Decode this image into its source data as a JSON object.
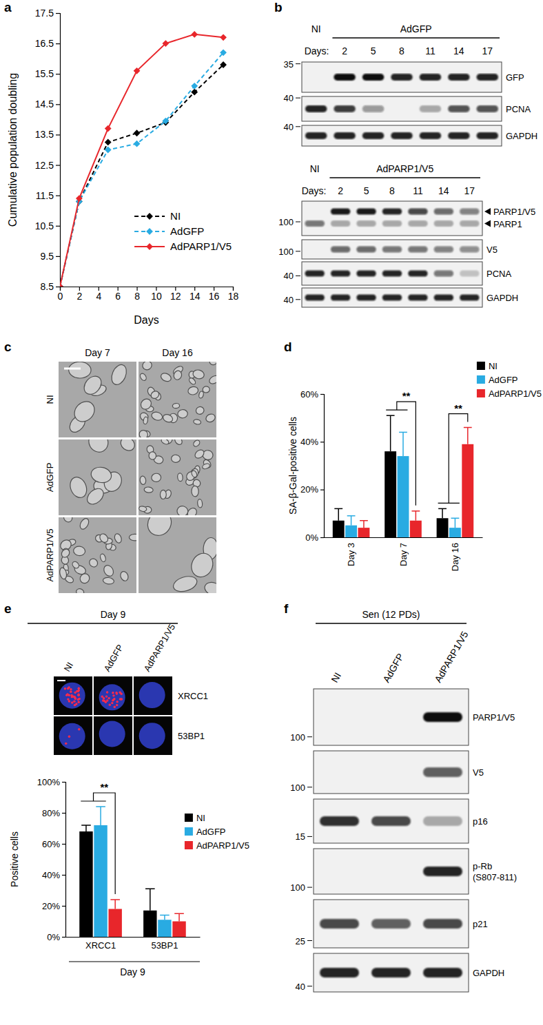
{
  "panel_labels": [
    "a",
    "b",
    "c",
    "d",
    "e",
    "f"
  ],
  "chart_data": [
    {
      "type": "line",
      "x_label": "Days",
      "y_label": "Cumulative population doubling",
      "x": [
        0,
        2,
        5,
        8,
        11,
        14,
        17
      ],
      "xlim": [
        0,
        18
      ],
      "xticks": [
        0,
        2,
        4,
        6,
        8,
        10,
        12,
        14,
        16,
        18
      ],
      "ylim": [
        8.5,
        17.5
      ],
      "yticks": [
        8.5,
        9.5,
        10.5,
        11.5,
        12.5,
        13.5,
        14.5,
        15.5,
        16.5,
        17.5
      ],
      "legend": "lower right",
      "series": [
        {
          "name": "NI",
          "color": "#000000",
          "marker": "diamond",
          "line_style": "dashed",
          "values": [
            8.5,
            11.3,
            13.25,
            13.55,
            13.9,
            14.9,
            15.8
          ]
        },
        {
          "name": "AdGFP",
          "color": "#29abe2",
          "marker": "diamond",
          "line_style": "dashed",
          "values": [
            8.5,
            11.3,
            13.0,
            13.2,
            13.95,
            15.1,
            16.2
          ]
        },
        {
          "name": "AdPARP1/V5",
          "color": "#e8262b",
          "marker": "diamond",
          "line_style": "solid",
          "values": [
            8.5,
            11.4,
            13.7,
            15.6,
            16.5,
            16.8,
            16.7
          ]
        }
      ]
    },
    {
      "type": "bar",
      "y_label": "SA-β-Gal-positive cells",
      "categories": [
        "Day 3",
        "Day 7",
        "Day 16"
      ],
      "ylim": [
        0,
        60
      ],
      "yticks": [
        {
          "value": 0,
          "label": "0%"
        },
        {
          "value": 20,
          "label": "20%"
        },
        {
          "value": 40,
          "label": "40%"
        },
        {
          "value": 60,
          "label": "60%"
        }
      ],
      "legend": "upper right",
      "series": [
        {
          "name": "NI",
          "color": "#000000",
          "values": [
            7,
            36,
            8
          ],
          "errors": [
            5,
            15,
            4
          ]
        },
        {
          "name": "AdGFP",
          "color": "#29abe2",
          "values": [
            5,
            34,
            4
          ],
          "errors": [
            4,
            10,
            4
          ]
        },
        {
          "name": "AdPARP1/V5",
          "color": "#e8262b",
          "values": [
            4,
            7,
            39
          ],
          "errors": [
            3,
            4,
            7
          ]
        }
      ],
      "annotations": [
        {
          "text": "**",
          "category": "Day 7"
        },
        {
          "text": "**",
          "category": "Day 16"
        }
      ]
    },
    {
      "type": "bar",
      "y_label": "Positive cells",
      "x_label": "Day 9",
      "categories": [
        "XRCC1",
        "53BP1"
      ],
      "ylim": [
        0,
        100
      ],
      "yticks": [
        {
          "value": 0,
          "label": "0%"
        },
        {
          "value": 20,
          "label": "20%"
        },
        {
          "value": 40,
          "label": "40%"
        },
        {
          "value": 60,
          "label": "60%"
        },
        {
          "value": 80,
          "label": "80%"
        },
        {
          "value": 100,
          "label": "100%"
        }
      ],
      "legend": "upper right",
      "series": [
        {
          "name": "NI",
          "color": "#000000",
          "values": [
            68,
            17
          ],
          "errors": [
            4,
            14
          ]
        },
        {
          "name": "AdGFP",
          "color": "#29abe2",
          "values": [
            72,
            11
          ],
          "errors": [
            12,
            3
          ]
        },
        {
          "name": "AdPARP1/V5",
          "color": "#e8262b",
          "values": [
            18,
            10
          ],
          "errors": [
            6,
            5
          ]
        }
      ],
      "annotations": [
        {
          "text": "**",
          "category": "XRCC1"
        }
      ]
    }
  ],
  "blots": [
    {
      "lane_prefix": "Days:",
      "lanes": [
        "NI",
        "2",
        "5",
        "8",
        "11",
        "14",
        "17"
      ],
      "groups": [
        {
          "label": "AdGFP",
          "from": 1,
          "to": 6
        }
      ],
      "rows": [
        {
          "marker": 35,
          "bands": [
            {
              "label": "GFP",
              "intensity": [
                0,
                1,
                1,
                0.9,
                0.9,
                0.9,
                0.9
              ]
            }
          ]
        },
        {
          "marker": 40,
          "bands": [
            {
              "label": "PCNA",
              "intensity": [
                0.9,
                0.8,
                0.4,
                0,
                0.3,
                0.7,
                0.7
              ]
            }
          ]
        },
        {
          "marker": 40,
          "bands": [
            {
              "label": "GAPDH",
              "intensity": [
                0.9,
                0.9,
                0.9,
                0.9,
                0.9,
                0.9,
                0.9
              ]
            }
          ]
        }
      ]
    },
    {
      "lane_prefix": "Days:",
      "lanes": [
        "NI",
        "2",
        "5",
        "8",
        "11",
        "14",
        "17"
      ],
      "groups": [
        {
          "label": "AdPARP1/V5",
          "from": 1,
          "to": 6
        }
      ],
      "rows": [
        {
          "marker": 100,
          "bands": [
            {
              "label": "PARP1/V5",
              "intensity": [
                0,
                0.95,
                0.95,
                0.9,
                0.75,
                0.6,
                0.5
              ]
            },
            {
              "label": "PARP1",
              "intensity": [
                0.55,
                0.3,
                0.3,
                0.3,
                0.3,
                0.3,
                0.3
              ]
            }
          ]
        },
        {
          "marker": 100,
          "bands": [
            {
              "label": "V5",
              "intensity": [
                0,
                0.6,
                0.6,
                0.55,
                0.55,
                0.5,
                0.45
              ]
            }
          ]
        },
        {
          "marker": 40,
          "bands": [
            {
              "label": "PCNA",
              "intensity": [
                0.9,
                0.9,
                0.9,
                0.9,
                0.9,
                0.55,
                0.2
              ]
            }
          ]
        },
        {
          "marker": 40,
          "bands": [
            {
              "label": "GAPDH",
              "intensity": [
                0.9,
                0.9,
                0.9,
                0.9,
                0.9,
                0.9,
                0.9
              ]
            }
          ]
        }
      ]
    },
    {
      "lanes": [
        "NI",
        "AdGFP",
        "AdPARP1/V5"
      ],
      "groups": [
        {
          "label": "Sen (12 PDs)",
          "from": 0,
          "to": 2
        }
      ],
      "rows": [
        {
          "marker": 100,
          "bands": [
            {
              "label": "PARP1/V5",
              "intensity": [
                0,
                0,
                1
              ]
            }
          ]
        },
        {
          "marker": 100,
          "bands": [
            {
              "label": "V5",
              "intensity": [
                0,
                0,
                0.65
              ]
            }
          ]
        },
        {
          "marker": 15,
          "bands": [
            {
              "label": "p16",
              "intensity": [
                0.85,
                0.75,
                0.3
              ]
            }
          ]
        },
        {
          "marker": 100,
          "bands": [
            {
              "label": [
                "p-Rb",
                "(S807-811)"
              ],
              "intensity": [
                0,
                0,
                0.9
              ]
            }
          ]
        },
        {
          "marker": 25,
          "bands": [
            {
              "label": "p21",
              "intensity": [
                0.75,
                0.65,
                0.75
              ]
            }
          ]
        },
        {
          "marker": 40,
          "bands": [
            {
              "label": "GAPDH",
              "intensity": [
                0.9,
                0.9,
                0.9
              ]
            }
          ]
        }
      ]
    }
  ],
  "micrographs": [
    {
      "columns": [
        "Day 7",
        "Day 16"
      ],
      "rows": [
        "NI",
        "AdGFP",
        "AdPARP1/V5"
      ],
      "cells": [
        [
          7,
          30
        ],
        [
          7,
          30
        ],
        [
          28,
          5
        ]
      ]
    },
    {
      "title": "Day 9",
      "columns": [
        "NI",
        "AdGFP",
        "AdPARP1/V5"
      ],
      "rows": [
        "XRCC1",
        "53BP1"
      ],
      "foci": [
        [
          30,
          26,
          0
        ],
        [
          3,
          0,
          0
        ]
      ]
    }
  ]
}
